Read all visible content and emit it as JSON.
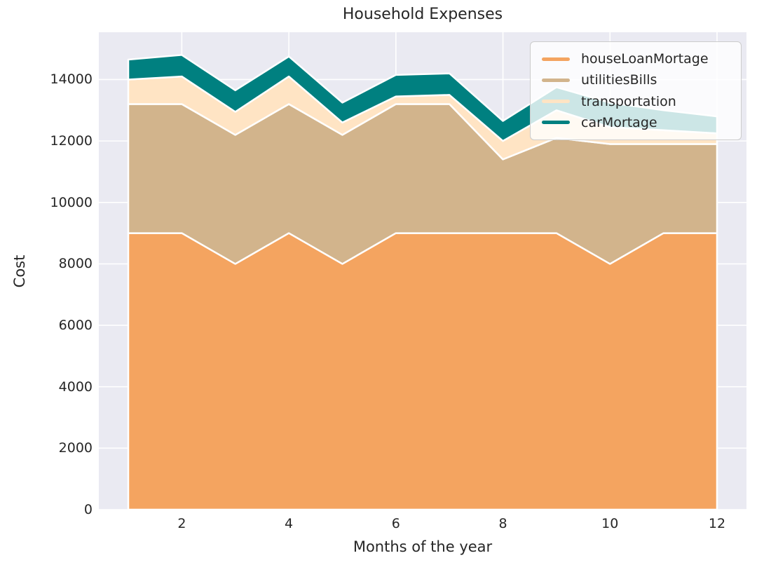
{
  "title": "Household Expenses",
  "chart_data": {
    "type": "area",
    "stacked": true,
    "title": "Household Expenses",
    "xlabel": "Months of the year",
    "ylabel": "Cost",
    "x": [
      1,
      2,
      3,
      4,
      5,
      6,
      7,
      8,
      9,
      10,
      11,
      12
    ],
    "series": [
      {
        "name": "houseLoanMortage",
        "color": "#F4A460",
        "values": [
          9000,
          9000,
          8000,
          9000,
          8000,
          9000,
          9000,
          9000,
          9000,
          8000,
          9000,
          9000
        ]
      },
      {
        "name": "utilitiesBills",
        "color": "#D2B48C",
        "values": [
          4200,
          4200,
          4200,
          4200,
          4200,
          4200,
          4200,
          2400,
          3100,
          3900,
          2900,
          2900
        ]
      },
      {
        "name": "transportation",
        "color": "#FFE4C4",
        "values": [
          800,
          900,
          750,
          900,
          400,
          250,
          300,
          600,
          900,
          550,
          450,
          350
        ]
      },
      {
        "name": "carMortage",
        "color": "#008080",
        "values": [
          650,
          700,
          700,
          650,
          650,
          700,
          700,
          650,
          750,
          800,
          650,
          550
        ]
      }
    ],
    "xticks": [
      2,
      4,
      6,
      8,
      10,
      12
    ],
    "yticks": [
      0,
      2000,
      4000,
      6000,
      8000,
      10000,
      12000,
      14000
    ],
    "xlim": [
      0.45,
      12.55
    ],
    "ylim": [
      0,
      15540
    ],
    "grid": true,
    "legend_position": "upper right",
    "plot_bg": "#EAEAF2",
    "grid_color": "#FFFFFF",
    "edge_color": "#FFFFFF",
    "text_color": "#262626"
  }
}
